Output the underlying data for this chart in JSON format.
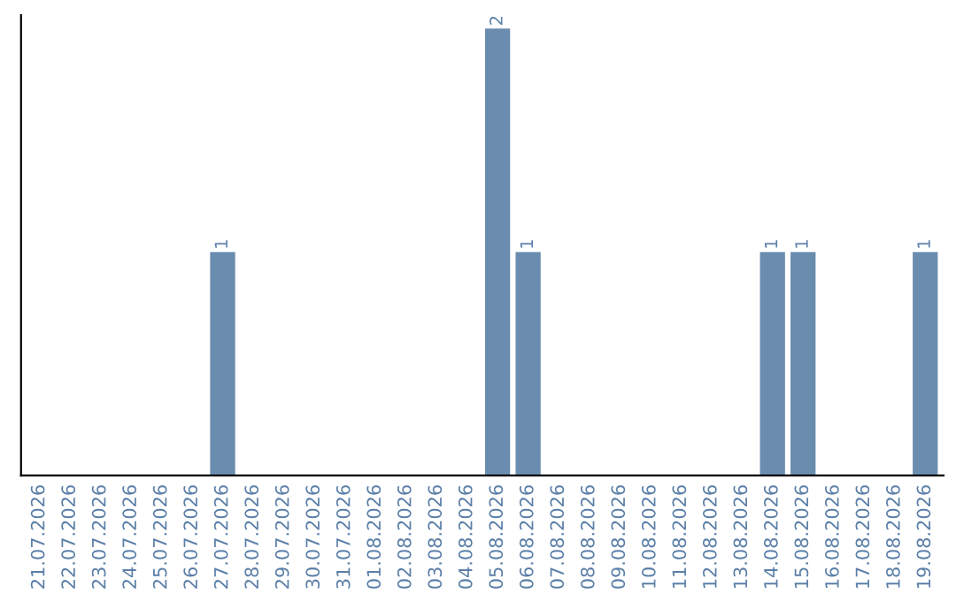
{
  "chart_data": {
    "type": "bar",
    "categories": [
      "21.07.2026",
      "22.07.2026",
      "23.07.2026",
      "24.07.2026",
      "25.07.2026",
      "26.07.2026",
      "27.07.2026",
      "28.07.2026",
      "29.07.2026",
      "30.07.2026",
      "31.07.2026",
      "01.08.2026",
      "02.08.2026",
      "03.08.2026",
      "04.08.2026",
      "05.08.2026",
      "06.08.2026",
      "07.08.2026",
      "08.08.2026",
      "09.08.2026",
      "10.08.2026",
      "11.08.2026",
      "12.08.2026",
      "13.08.2026",
      "14.08.2026",
      "15.08.2026",
      "16.08.2026",
      "17.08.2026",
      "18.08.2026",
      "19.08.2026"
    ],
    "values": [
      0,
      0,
      0,
      0,
      0,
      0,
      1,
      0,
      0,
      0,
      0,
      0,
      0,
      0,
      0,
      2,
      1,
      0,
      0,
      0,
      0,
      0,
      0,
      0,
      1,
      1,
      0,
      0,
      0,
      1
    ],
    "value_labels": [
      null,
      null,
      null,
      null,
      null,
      null,
      "1",
      null,
      null,
      null,
      null,
      null,
      null,
      null,
      null,
      "2",
      "1",
      null,
      null,
      null,
      null,
      null,
      null,
      null,
      "1",
      "1",
      null,
      null,
      null,
      "1"
    ],
    "color": "#6a8caf",
    "tick_labels": "x",
    "grid": false,
    "legend": false
  }
}
